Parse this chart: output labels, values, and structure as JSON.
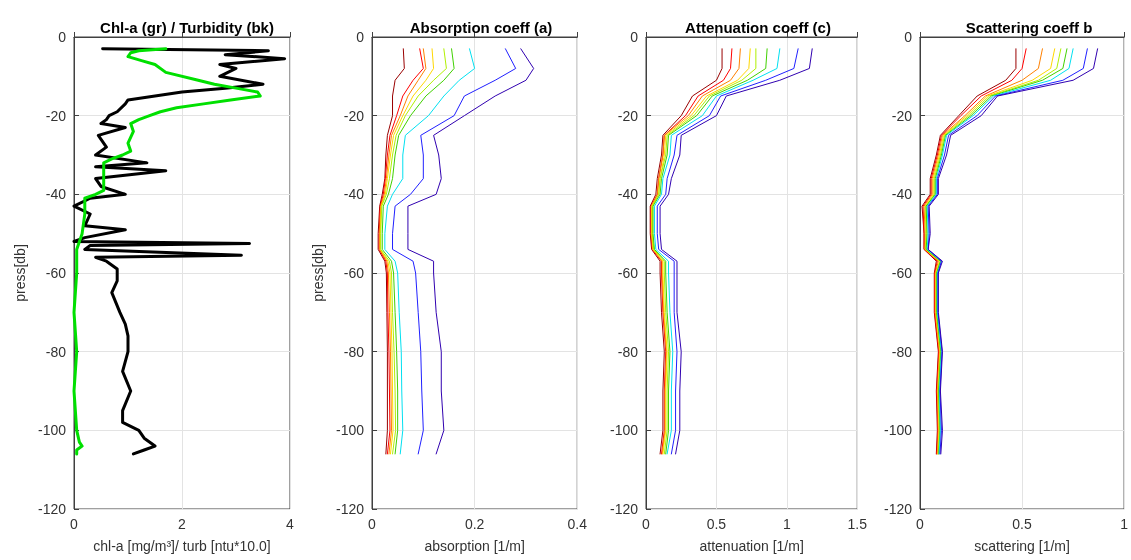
{
  "chart_data": [
    {
      "type": "line",
      "title": "Chl-a (gr) / Turbidity (bk)",
      "xlabel": "chl-a [mg/m³]/ turb [ntu*10.0]",
      "ylabel": "press[db]",
      "xlim": [
        0,
        4
      ],
      "xticks": [
        0,
        2,
        4
      ],
      "ylim": [
        -120,
        0
      ],
      "yticks": [
        -120,
        -100,
        -80,
        -60,
        -40,
        -20,
        0
      ],
      "grid": true,
      "series": [
        {
          "color": "#000000",
          "x": [
            0.53,
            3.6,
            2.8,
            3.9,
            2.7,
            3.0,
            2.7,
            3.5,
            2.8,
            2.0,
            1.0,
            0.95,
            0.8,
            0.65,
            0.6,
            0.5,
            0.95,
            0.45,
            0.6,
            0.4,
            1.35,
            0.4,
            1.7,
            0.4,
            0.5,
            0.95,
            0.3,
            0.0,
            0.3,
            0.2,
            0.95,
            0.2,
            0.0,
            3.25,
            0.3,
            0.2,
            3.1,
            0.4,
            0.6,
            0.8,
            0.8,
            0.7,
            0.85,
            0.95,
            1.0,
            1.0,
            0.9,
            1.05,
            0.9,
            0.9,
            1.2,
            1.3,
            1.5,
            1.3,
            1.1
          ],
          "values": [
            -3,
            -3.5,
            -4.5,
            -5.5,
            -7,
            -8,
            -10,
            -12,
            -13,
            -14,
            -16,
            -17,
            -19,
            -20,
            -21,
            -22,
            -23,
            -25,
            -28,
            -30,
            -32,
            -33,
            -34,
            -36,
            -38,
            -40,
            -41,
            -43,
            -45,
            -48,
            -49,
            -51,
            -52,
            -52.5,
            -53,
            -54,
            -55.5,
            -56,
            -57,
            -59,
            -62,
            -65,
            -70,
            -73,
            -76,
            -80,
            -85,
            -90,
            -95,
            -98,
            -100,
            -102,
            -104,
            -105,
            -106
          ]
        },
        {
          "color": "#00e000",
          "x": [
            1.7,
            1.2,
            1.05,
            1.0,
            1.25,
            1.5,
            1.7,
            2.3,
            2.6,
            3.0,
            3.4,
            3.45,
            2.9,
            2.4,
            1.9,
            1.6,
            1.4,
            1.2,
            1.05,
            1.1,
            1.0,
            1.05,
            0.9,
            0.7,
            0.55,
            0.55,
            0.55,
            0.55,
            0.4,
            0.2,
            0.2,
            0.15,
            0.05,
            0.05,
            0.0,
            0.05,
            0.0,
            0.05,
            0.1,
            0.15,
            0.05,
            0.05
          ],
          "values": [
            -3,
            -3.5,
            -4,
            -5,
            -6,
            -7,
            -9,
            -11,
            -12,
            -13,
            -14,
            -15,
            -16,
            -17,
            -18,
            -19,
            -20,
            -21,
            -22,
            -24,
            -27,
            -29,
            -30,
            -31,
            -32,
            -34,
            -36,
            -39,
            -40,
            -41,
            -45,
            -50,
            -54,
            -60,
            -70,
            -80,
            -90,
            -100,
            -103,
            -104,
            -105,
            -106
          ]
        }
      ]
    },
    {
      "type": "line",
      "title": "Absorption coeff (a)",
      "xlabel": "absorption [1/m]",
      "ylabel": "press[db]",
      "xlim": [
        0,
        0.4
      ],
      "xticks": [
        0,
        0.2,
        0.4
      ],
      "ylim": [
        -120,
        0
      ],
      "yticks": [
        -120,
        -100,
        -80,
        -60,
        -40,
        -20,
        0
      ],
      "grid": true,
      "series": [
        {
          "color": "#990000",
          "x": [
            0.061,
            0.063,
            0.045,
            0.04,
            0.04,
            0.03,
            0.027,
            0.025,
            0.02,
            0.015,
            0.012,
            0.012,
            0.025,
            0.028,
            0.029,
            0.03,
            0.03,
            0.03,
            0.027
          ],
          "values": [
            -3,
            -8,
            -11,
            -15,
            -20,
            -25,
            -30,
            -36,
            -40,
            -43,
            -50,
            -54,
            -57,
            -60,
            -70,
            -80,
            -90,
            -100,
            -106
          ]
        },
        {
          "color": "#ff0000",
          "x": [
            0.093,
            0.1,
            0.08,
            0.06,
            0.048,
            0.035,
            0.03,
            0.026,
            0.022,
            0.016,
            0.014,
            0.014,
            0.027,
            0.03,
            0.031,
            0.033,
            0.034,
            0.035,
            0.03
          ],
          "values": [
            -3,
            -8,
            -11,
            -15,
            -20,
            -25,
            -30,
            -36,
            -40,
            -43,
            -50,
            -54,
            -57,
            -60,
            -70,
            -80,
            -90,
            -100,
            -106
          ]
        },
        {
          "color": "#ff8000",
          "x": [
            0.1,
            0.105,
            0.09,
            0.07,
            0.055,
            0.038,
            0.033,
            0.028,
            0.024,
            0.017,
            0.015,
            0.015,
            0.029,
            0.032,
            0.034,
            0.036,
            0.037,
            0.038,
            0.033
          ],
          "values": [
            -3,
            -8,
            -11,
            -15,
            -20,
            -25,
            -30,
            -36,
            -40,
            -43,
            -50,
            -54,
            -57,
            -60,
            -70,
            -80,
            -90,
            -100,
            -106
          ]
        },
        {
          "color": "#ffd700",
          "x": [
            0.117,
            0.12,
            0.105,
            0.08,
            0.06,
            0.042,
            0.036,
            0.03,
            0.026,
            0.018,
            0.016,
            0.016,
            0.031,
            0.035,
            0.037,
            0.039,
            0.04,
            0.041,
            0.036
          ],
          "values": [
            -3,
            -8,
            -11,
            -15,
            -20,
            -25,
            -30,
            -36,
            -40,
            -43,
            -50,
            -54,
            -57,
            -60,
            -70,
            -80,
            -90,
            -100,
            -106
          ]
        },
        {
          "color": "#b0f000",
          "x": [
            0.14,
            0.145,
            0.12,
            0.09,
            0.065,
            0.047,
            0.04,
            0.034,
            0.028,
            0.019,
            0.017,
            0.017,
            0.034,
            0.038,
            0.04,
            0.043,
            0.045,
            0.046,
            0.04
          ],
          "values": [
            -3,
            -8,
            -11,
            -15,
            -20,
            -25,
            -30,
            -36,
            -40,
            -43,
            -50,
            -54,
            -57,
            -60,
            -70,
            -80,
            -90,
            -100,
            -106
          ]
        },
        {
          "color": "#40d000",
          "x": [
            0.155,
            0.16,
            0.14,
            0.105,
            0.075,
            0.052,
            0.045,
            0.04,
            0.032,
            0.022,
            0.02,
            0.02,
            0.038,
            0.042,
            0.045,
            0.048,
            0.05,
            0.05,
            0.045
          ],
          "values": [
            -3,
            -8,
            -11,
            -15,
            -20,
            -25,
            -30,
            -36,
            -40,
            -43,
            -50,
            -54,
            -57,
            -60,
            -70,
            -80,
            -90,
            -100,
            -106
          ]
        },
        {
          "color": "#00e0f0",
          "x": [
            0.19,
            0.2,
            0.17,
            0.14,
            0.11,
            0.065,
            0.06,
            0.06,
            0.04,
            0.03,
            0.025,
            0.025,
            0.045,
            0.05,
            0.053,
            0.057,
            0.058,
            0.06,
            0.055
          ],
          "values": [
            -3,
            -8,
            -11,
            -15,
            -20,
            -25,
            -30,
            -36,
            -40,
            -43,
            -50,
            -54,
            -57,
            -60,
            -70,
            -80,
            -90,
            -100,
            -106
          ]
        },
        {
          "color": "#2020ff",
          "x": [
            0.26,
            0.28,
            0.24,
            0.18,
            0.16,
            0.095,
            0.1,
            0.1,
            0.075,
            0.045,
            0.04,
            0.04,
            0.08,
            0.085,
            0.09,
            0.095,
            0.097,
            0.1,
            0.09
          ],
          "values": [
            -3,
            -8,
            -11,
            -15,
            -20,
            -25,
            -30,
            -36,
            -40,
            -43,
            -50,
            -54,
            -57,
            -60,
            -70,
            -80,
            -90,
            -100,
            -106
          ]
        },
        {
          "color": "#3000b0",
          "x": [
            0.29,
            0.315,
            0.3,
            0.24,
            0.18,
            0.12,
            0.13,
            0.135,
            0.125,
            0.07,
            0.07,
            0.07,
            0.12,
            0.12,
            0.125,
            0.135,
            0.135,
            0.14,
            0.125
          ],
          "values": [
            -3,
            -8,
            -11,
            -15,
            -20,
            -25,
            -30,
            -36,
            -40,
            -43,
            -50,
            -54,
            -57,
            -60,
            -70,
            -80,
            -90,
            -100,
            -106
          ]
        }
      ]
    },
    {
      "type": "line",
      "title": "Attenuation coeff (c)",
      "xlabel": "attenuation [1/m]",
      "xlim": [
        0,
        1.5
      ],
      "xticks": [
        0,
        0.5,
        1,
        1.5
      ],
      "ylim": [
        -120,
        0
      ],
      "yticks": [
        -120,
        -100,
        -80,
        -60,
        -40,
        -20,
        0
      ],
      "grid": true,
      "series": [
        {
          "color": "#990000",
          "x": [
            0.54,
            0.54,
            0.5,
            0.33,
            0.25,
            0.12,
            0.11,
            0.08,
            0.07,
            0.03,
            0.03,
            0.04,
            0.1,
            0.1,
            0.11,
            0.13,
            0.12,
            0.12,
            0.1
          ],
          "values": [
            -3,
            -8,
            -11,
            -15,
            -20,
            -25,
            -30,
            -36,
            -40,
            -43,
            -50,
            -54,
            -57,
            -60,
            -70,
            -80,
            -90,
            -100,
            -106
          ]
        },
        {
          "color": "#ff0000",
          "x": [
            0.61,
            0.6,
            0.55,
            0.37,
            0.28,
            0.13,
            0.12,
            0.09,
            0.08,
            0.035,
            0.035,
            0.045,
            0.11,
            0.11,
            0.12,
            0.14,
            0.13,
            0.13,
            0.11
          ],
          "values": [
            -3,
            -8,
            -11,
            -15,
            -20,
            -25,
            -30,
            -36,
            -40,
            -43,
            -50,
            -54,
            -57,
            -60,
            -70,
            -80,
            -90,
            -100,
            -106
          ]
        },
        {
          "color": "#ff8000",
          "x": [
            0.67,
            0.66,
            0.6,
            0.4,
            0.3,
            0.13,
            0.12,
            0.09,
            0.08,
            0.04,
            0.04,
            0.05,
            0.115,
            0.115,
            0.125,
            0.145,
            0.135,
            0.135,
            0.115
          ],
          "values": [
            -3,
            -8,
            -11,
            -15,
            -20,
            -25,
            -30,
            -36,
            -40,
            -43,
            -50,
            -54,
            -57,
            -60,
            -70,
            -80,
            -90,
            -100,
            -106
          ]
        },
        {
          "color": "#ffd700",
          "x": [
            0.74,
            0.73,
            0.65,
            0.43,
            0.32,
            0.14,
            0.13,
            0.1,
            0.09,
            0.04,
            0.04,
            0.05,
            0.12,
            0.12,
            0.13,
            0.15,
            0.14,
            0.14,
            0.12
          ],
          "values": [
            -3,
            -8,
            -11,
            -15,
            -20,
            -25,
            -30,
            -36,
            -40,
            -43,
            -50,
            -54,
            -57,
            -60,
            -70,
            -80,
            -90,
            -100,
            -106
          ]
        },
        {
          "color": "#b0f000",
          "x": [
            0.78,
            0.78,
            0.68,
            0.45,
            0.34,
            0.15,
            0.14,
            0.1,
            0.09,
            0.045,
            0.045,
            0.055,
            0.13,
            0.13,
            0.14,
            0.16,
            0.15,
            0.15,
            0.13
          ],
          "values": [
            -3,
            -8,
            -11,
            -15,
            -20,
            -25,
            -30,
            -36,
            -40,
            -43,
            -50,
            -54,
            -57,
            -60,
            -70,
            -80,
            -90,
            -100,
            -106
          ]
        },
        {
          "color": "#40d000",
          "x": [
            0.86,
            0.85,
            0.72,
            0.47,
            0.36,
            0.16,
            0.15,
            0.11,
            0.1,
            0.05,
            0.05,
            0.06,
            0.14,
            0.14,
            0.15,
            0.17,
            0.16,
            0.16,
            0.14
          ],
          "values": [
            -3,
            -8,
            -11,
            -15,
            -20,
            -25,
            -30,
            -36,
            -40,
            -43,
            -50,
            -54,
            -57,
            -60,
            -70,
            -80,
            -90,
            -100,
            -106
          ]
        },
        {
          "color": "#00e0f0",
          "x": [
            0.95,
            0.93,
            0.76,
            0.5,
            0.4,
            0.18,
            0.17,
            0.12,
            0.11,
            0.06,
            0.06,
            0.07,
            0.16,
            0.16,
            0.17,
            0.19,
            0.18,
            0.18,
            0.15
          ],
          "values": [
            -3,
            -8,
            -11,
            -15,
            -20,
            -25,
            -30,
            -36,
            -40,
            -43,
            -50,
            -54,
            -57,
            -60,
            -70,
            -80,
            -90,
            -100,
            -106
          ]
        },
        {
          "color": "#2020ff",
          "x": [
            1.08,
            1.05,
            0.85,
            0.53,
            0.45,
            0.22,
            0.2,
            0.15,
            0.14,
            0.08,
            0.08,
            0.09,
            0.2,
            0.2,
            0.2,
            0.22,
            0.21,
            0.21,
            0.18
          ],
          "values": [
            -3,
            -8,
            -11,
            -15,
            -20,
            -25,
            -30,
            -36,
            -40,
            -43,
            -50,
            -54,
            -57,
            -60,
            -70,
            -80,
            -90,
            -100,
            -106
          ]
        },
        {
          "color": "#3000b0",
          "x": [
            1.18,
            1.16,
            0.95,
            0.57,
            0.5,
            0.25,
            0.24,
            0.18,
            0.16,
            0.1,
            0.1,
            0.11,
            0.22,
            0.22,
            0.22,
            0.25,
            0.24,
            0.24,
            0.21
          ],
          "values": [
            -3,
            -8,
            -11,
            -15,
            -20,
            -25,
            -30,
            -36,
            -40,
            -43,
            -50,
            -54,
            -57,
            -60,
            -70,
            -80,
            -90,
            -100,
            -106
          ]
        }
      ]
    },
    {
      "type": "line",
      "title": "Scattering coeff b",
      "xlabel": "scattering [1/m]",
      "xlim": [
        0,
        1
      ],
      "xticks": [
        0,
        0.5,
        1
      ],
      "ylim": [
        -120,
        0
      ],
      "yticks": [
        -120,
        -100,
        -80,
        -60,
        -40,
        -20,
        0
      ],
      "grid": true,
      "series": [
        {
          "color": "#990000",
          "x": [
            0.47,
            0.47,
            0.42,
            0.28,
            0.19,
            0.1,
            0.08,
            0.05,
            0.05,
            0.01,
            0.02,
            0.02,
            0.08,
            0.07,
            0.07,
            0.09,
            0.08,
            0.085,
            0.08
          ],
          "values": [
            -3,
            -8,
            -11,
            -15,
            -20,
            -25,
            -30,
            -36,
            -40,
            -43,
            -50,
            -54,
            -57,
            -60,
            -70,
            -80,
            -90,
            -100,
            -106
          ]
        },
        {
          "color": "#ff0000",
          "x": [
            0.52,
            0.5,
            0.45,
            0.3,
            0.2,
            0.105,
            0.085,
            0.055,
            0.055,
            0.015,
            0.02,
            0.02,
            0.085,
            0.072,
            0.072,
            0.092,
            0.082,
            0.088,
            0.082
          ],
          "values": [
            -3,
            -8,
            -11,
            -15,
            -20,
            -25,
            -30,
            -36,
            -40,
            -43,
            -50,
            -54,
            -57,
            -60,
            -70,
            -80,
            -90,
            -100,
            -106
          ]
        },
        {
          "color": "#ff8000",
          "x": [
            0.6,
            0.58,
            0.5,
            0.32,
            0.22,
            0.11,
            0.09,
            0.06,
            0.06,
            0.02,
            0.025,
            0.025,
            0.09,
            0.075,
            0.075,
            0.095,
            0.085,
            0.09,
            0.085
          ],
          "values": [
            -3,
            -8,
            -11,
            -15,
            -20,
            -25,
            -30,
            -36,
            -40,
            -43,
            -50,
            -54,
            -57,
            -60,
            -70,
            -80,
            -90,
            -100,
            -106
          ]
        },
        {
          "color": "#ffd700",
          "x": [
            0.66,
            0.64,
            0.55,
            0.33,
            0.23,
            0.115,
            0.095,
            0.065,
            0.065,
            0.025,
            0.03,
            0.025,
            0.095,
            0.078,
            0.078,
            0.098,
            0.088,
            0.093,
            0.088
          ],
          "values": [
            -3,
            -8,
            -11,
            -15,
            -20,
            -25,
            -30,
            -36,
            -40,
            -43,
            -50,
            -54,
            -57,
            -60,
            -70,
            -80,
            -90,
            -100,
            -106
          ]
        },
        {
          "color": "#b0f000",
          "x": [
            0.69,
            0.67,
            0.58,
            0.34,
            0.24,
            0.12,
            0.1,
            0.07,
            0.07,
            0.03,
            0.03,
            0.03,
            0.1,
            0.08,
            0.08,
            0.1,
            0.09,
            0.095,
            0.09
          ],
          "values": [
            -3,
            -8,
            -11,
            -15,
            -20,
            -25,
            -30,
            -36,
            -40,
            -43,
            -50,
            -54,
            -57,
            -60,
            -70,
            -80,
            -90,
            -100,
            -106
          ]
        },
        {
          "color": "#40d000",
          "x": [
            0.72,
            0.7,
            0.6,
            0.35,
            0.25,
            0.125,
            0.105,
            0.075,
            0.075,
            0.03,
            0.035,
            0.03,
            0.1,
            0.082,
            0.082,
            0.102,
            0.092,
            0.098,
            0.092
          ],
          "values": [
            -3,
            -8,
            -11,
            -15,
            -20,
            -25,
            -30,
            -36,
            -40,
            -43,
            -50,
            -54,
            -57,
            -60,
            -70,
            -80,
            -90,
            -100,
            -106
          ]
        },
        {
          "color": "#00e0f0",
          "x": [
            0.75,
            0.73,
            0.64,
            0.36,
            0.26,
            0.13,
            0.11,
            0.08,
            0.08,
            0.035,
            0.04,
            0.035,
            0.105,
            0.085,
            0.085,
            0.105,
            0.095,
            0.1,
            0.094
          ],
          "values": [
            -3,
            -8,
            -11,
            -15,
            -20,
            -25,
            -30,
            -36,
            -40,
            -43,
            -50,
            -54,
            -57,
            -60,
            -70,
            -80,
            -90,
            -100,
            -106
          ]
        },
        {
          "color": "#2020ff",
          "x": [
            0.82,
            0.8,
            0.7,
            0.37,
            0.28,
            0.14,
            0.12,
            0.085,
            0.085,
            0.04,
            0.045,
            0.04,
            0.105,
            0.088,
            0.088,
            0.108,
            0.098,
            0.105,
            0.098
          ],
          "values": [
            -3,
            -8,
            -11,
            -15,
            -20,
            -25,
            -30,
            -36,
            -40,
            -43,
            -50,
            -54,
            -57,
            -60,
            -70,
            -80,
            -90,
            -100,
            -106
          ]
        },
        {
          "color": "#3000b0",
          "x": [
            0.87,
            0.85,
            0.75,
            0.38,
            0.3,
            0.15,
            0.13,
            0.09,
            0.09,
            0.045,
            0.05,
            0.04,
            0.11,
            0.09,
            0.09,
            0.11,
            0.1,
            0.11,
            0.102
          ],
          "values": [
            -3,
            -8,
            -11,
            -15,
            -20,
            -25,
            -30,
            -36,
            -40,
            -43,
            -50,
            -54,
            -57,
            -60,
            -70,
            -80,
            -90,
            -100,
            -106
          ]
        }
      ]
    }
  ]
}
